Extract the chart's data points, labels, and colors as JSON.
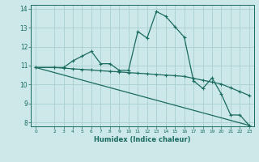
{
  "xlabel": "Humidex (Indice chaleur)",
  "bg_color": "#cce8e8",
  "grid_color": "#aad0d0",
  "line_color": "#1a6b60",
  "xlim": [
    -0.5,
    23.5
  ],
  "ylim": [
    7.8,
    14.2
  ],
  "yticks": [
    8,
    9,
    10,
    11,
    12,
    13,
    14
  ],
  "xticks": [
    0,
    2,
    3,
    4,
    5,
    6,
    7,
    8,
    9,
    10,
    11,
    12,
    13,
    14,
    15,
    16,
    17,
    18,
    19,
    20,
    21,
    22,
    23
  ],
  "line1_x": [
    0,
    2,
    3,
    4,
    5,
    6,
    7,
    8,
    9,
    10,
    11,
    12,
    13,
    14,
    15,
    16,
    17,
    18,
    19,
    20,
    21,
    22,
    23
  ],
  "line1_y": [
    10.9,
    10.9,
    10.9,
    11.25,
    11.5,
    11.75,
    11.1,
    11.1,
    10.75,
    10.75,
    12.8,
    12.45,
    13.85,
    13.6,
    13.05,
    12.5,
    10.2,
    9.8,
    10.35,
    9.5,
    8.4,
    8.4,
    7.85
  ],
  "line2_x": [
    0,
    2,
    3,
    4,
    5,
    6,
    7,
    8,
    9,
    10,
    11,
    12,
    13,
    14,
    15,
    16,
    17,
    18,
    19,
    20,
    21,
    22,
    23
  ],
  "line2_y": [
    10.9,
    10.9,
    10.87,
    10.83,
    10.8,
    10.77,
    10.73,
    10.7,
    10.67,
    10.63,
    10.6,
    10.57,
    10.53,
    10.5,
    10.47,
    10.43,
    10.33,
    10.23,
    10.13,
    10.03,
    9.83,
    9.63,
    9.43
  ],
  "line3_x": [
    0,
    23
  ],
  "line3_y": [
    10.9,
    7.85
  ]
}
